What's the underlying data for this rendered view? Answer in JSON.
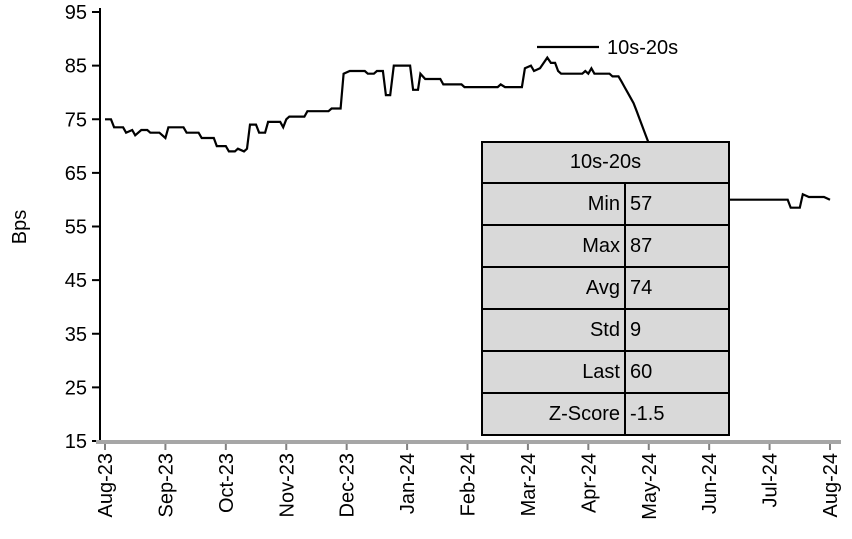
{
  "chart_data": {
    "type": "line",
    "title": "",
    "ylabel": "Bps",
    "xlabel": "",
    "ylim": [
      15,
      95
    ],
    "yticks": [
      95,
      85,
      75,
      65,
      55,
      45,
      35,
      25,
      15
    ],
    "x_tick_labels": [
      "Aug-23",
      "Sep-23",
      "Oct-23",
      "Nov-23",
      "Dec-23",
      "Jan-24",
      "Feb-24",
      "Mar-24",
      "Apr-24",
      "May-24",
      "Jun-24",
      "Jul-24",
      "Aug-24"
    ],
    "grid": false,
    "legend_position": "top-right-inside",
    "line_color": "#000000",
    "x_axis_color": "#a6a6a6",
    "y_axis_color": "#000000",
    "series": [
      {
        "name": "10s-20s",
        "x": [
          0,
          0.1,
          0.15,
          0.3,
          0.35,
          0.45,
          0.5,
          0.6,
          0.7,
          0.75,
          0.9,
          1.0,
          1.05,
          1.3,
          1.35,
          1.55,
          1.6,
          1.8,
          1.85,
          2.0,
          2.05,
          2.15,
          2.2,
          2.3,
          2.35,
          2.4,
          2.5,
          2.55,
          2.65,
          2.7,
          2.9,
          2.95,
          3.0,
          3.05,
          3.3,
          3.35,
          3.7,
          3.75,
          3.9,
          3.95,
          4.05,
          4.3,
          4.35,
          4.45,
          4.5,
          4.6,
          4.65,
          4.72,
          4.78,
          5.05,
          5.1,
          5.18,
          5.22,
          5.3,
          5.55,
          5.6,
          5.9,
          5.95,
          6.5,
          6.55,
          6.62,
          6.9,
          6.95,
          7.05,
          7.1,
          7.2,
          7.32,
          7.38,
          7.45,
          7.5,
          7.55,
          7.9,
          7.95,
          8.0,
          8.05,
          8.1,
          8.35,
          8.4,
          8.5,
          8.55,
          8.6,
          8.65,
          8.7,
          8.75,
          8.8,
          8.85,
          8.9,
          8.95,
          9.0,
          9.05,
          9.15,
          9.25,
          9.35,
          9.45,
          9.55,
          9.65,
          9.75,
          9.85,
          9.95,
          10.1,
          10.3,
          11.3,
          11.35,
          11.5,
          11.55,
          11.65,
          11.9,
          12.0
        ],
        "y": [
          75,
          75,
          73.5,
          73.5,
          72.5,
          73,
          72,
          73,
          73,
          72.5,
          72.5,
          71.5,
          73.5,
          73.5,
          72.5,
          72.5,
          71.5,
          71.5,
          70,
          70,
          69,
          69,
          69.5,
          69,
          69.5,
          74,
          74,
          72.5,
          72.5,
          74.5,
          74.5,
          73.5,
          75,
          75.5,
          75.5,
          76.5,
          76.5,
          77,
          77,
          83.5,
          84,
          84,
          83.5,
          83.5,
          84,
          84,
          79.5,
          79.5,
          85,
          85,
          80.5,
          80.5,
          83.5,
          82.5,
          82.5,
          81.5,
          81.5,
          81,
          81,
          81.5,
          81,
          81,
          84.5,
          85,
          84,
          84.5,
          86.5,
          85.5,
          85.5,
          84,
          83.5,
          83.5,
          84,
          83.5,
          84.5,
          83.5,
          83.5,
          83,
          83,
          82,
          81,
          80,
          79,
          78,
          76.5,
          75,
          73.5,
          72,
          70.5,
          70,
          68,
          65,
          63,
          61,
          59,
          58,
          57,
          58,
          59.5,
          60,
          60,
          60,
          58.5,
          58.5,
          61,
          60.5,
          60.5,
          60
        ]
      }
    ]
  },
  "stats_table": {
    "header": "10s-20s",
    "background": "#d9d9d9",
    "rows": [
      {
        "label": "Min",
        "value": "57"
      },
      {
        "label": "Max",
        "value": "87"
      },
      {
        "label": "Avg",
        "value": "74"
      },
      {
        "label": "Std",
        "value": "9"
      },
      {
        "label": "Last",
        "value": "60"
      },
      {
        "label": "Z-Score",
        "value": "-1.5"
      }
    ]
  }
}
